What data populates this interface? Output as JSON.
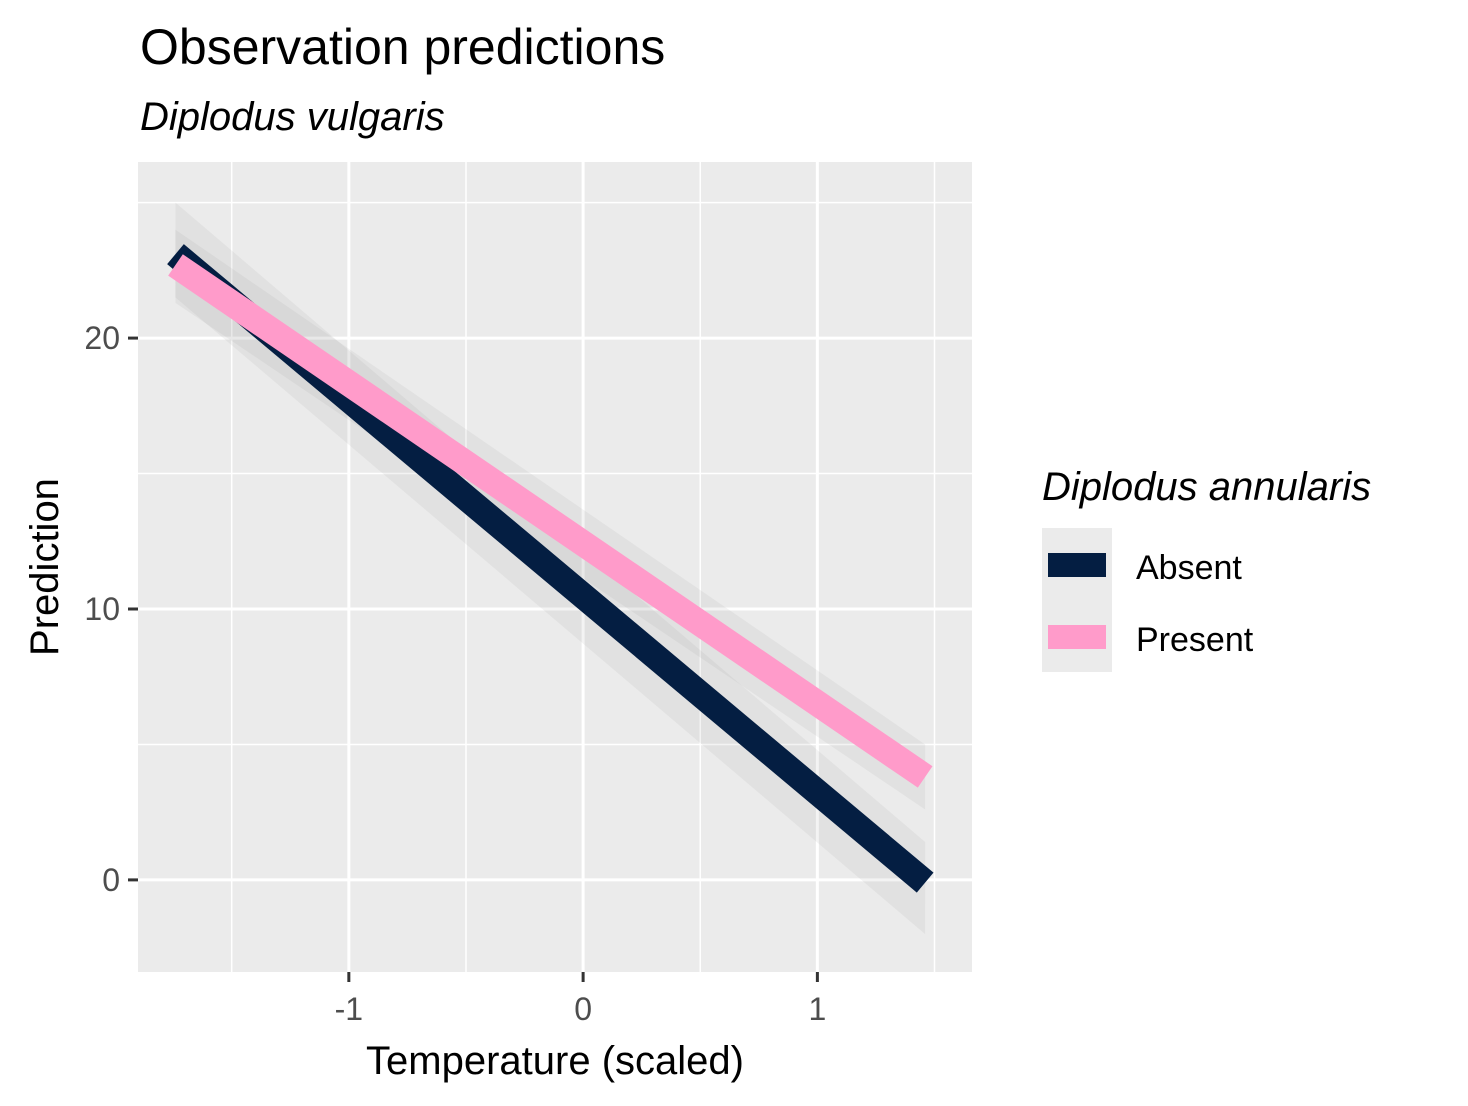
{
  "chart_data": {
    "type": "line",
    "title": "Observation predictions",
    "subtitle": "Diplodus vulgaris",
    "xlabel": "Temperature (scaled)",
    "ylabel": "Prediction",
    "xlim": [
      -1.9,
      1.66
    ],
    "ylim": [
      -3.4,
      26.5
    ],
    "x_ticks": [
      -1,
      0,
      1
    ],
    "x_tick_labels": [
      "-1",
      "0",
      "1"
    ],
    "y_ticks": [
      0,
      10,
      20
    ],
    "y_tick_labels": [
      "0",
      "10",
      "20"
    ],
    "grid": true,
    "legend": {
      "title": "Diplodus annularis",
      "position": "right",
      "entries": [
        "Absent",
        "Present"
      ]
    },
    "series": [
      {
        "name": "Absent",
        "color": "#041e42",
        "x": [
          -1.74,
          1.46
        ],
        "y": [
          23.1,
          -0.1
        ],
        "ci_lower": [
          21.5,
          -2.0
        ],
        "ci_upper": [
          25.0,
          1.4
        ]
      },
      {
        "name": "Present",
        "color": "#ff9bca",
        "x": [
          -1.74,
          1.46
        ],
        "y": [
          22.7,
          3.8
        ],
        "ci_lower": [
          21.3,
          2.6
        ],
        "ci_upper": [
          24.0,
          5.0
        ]
      }
    ]
  }
}
